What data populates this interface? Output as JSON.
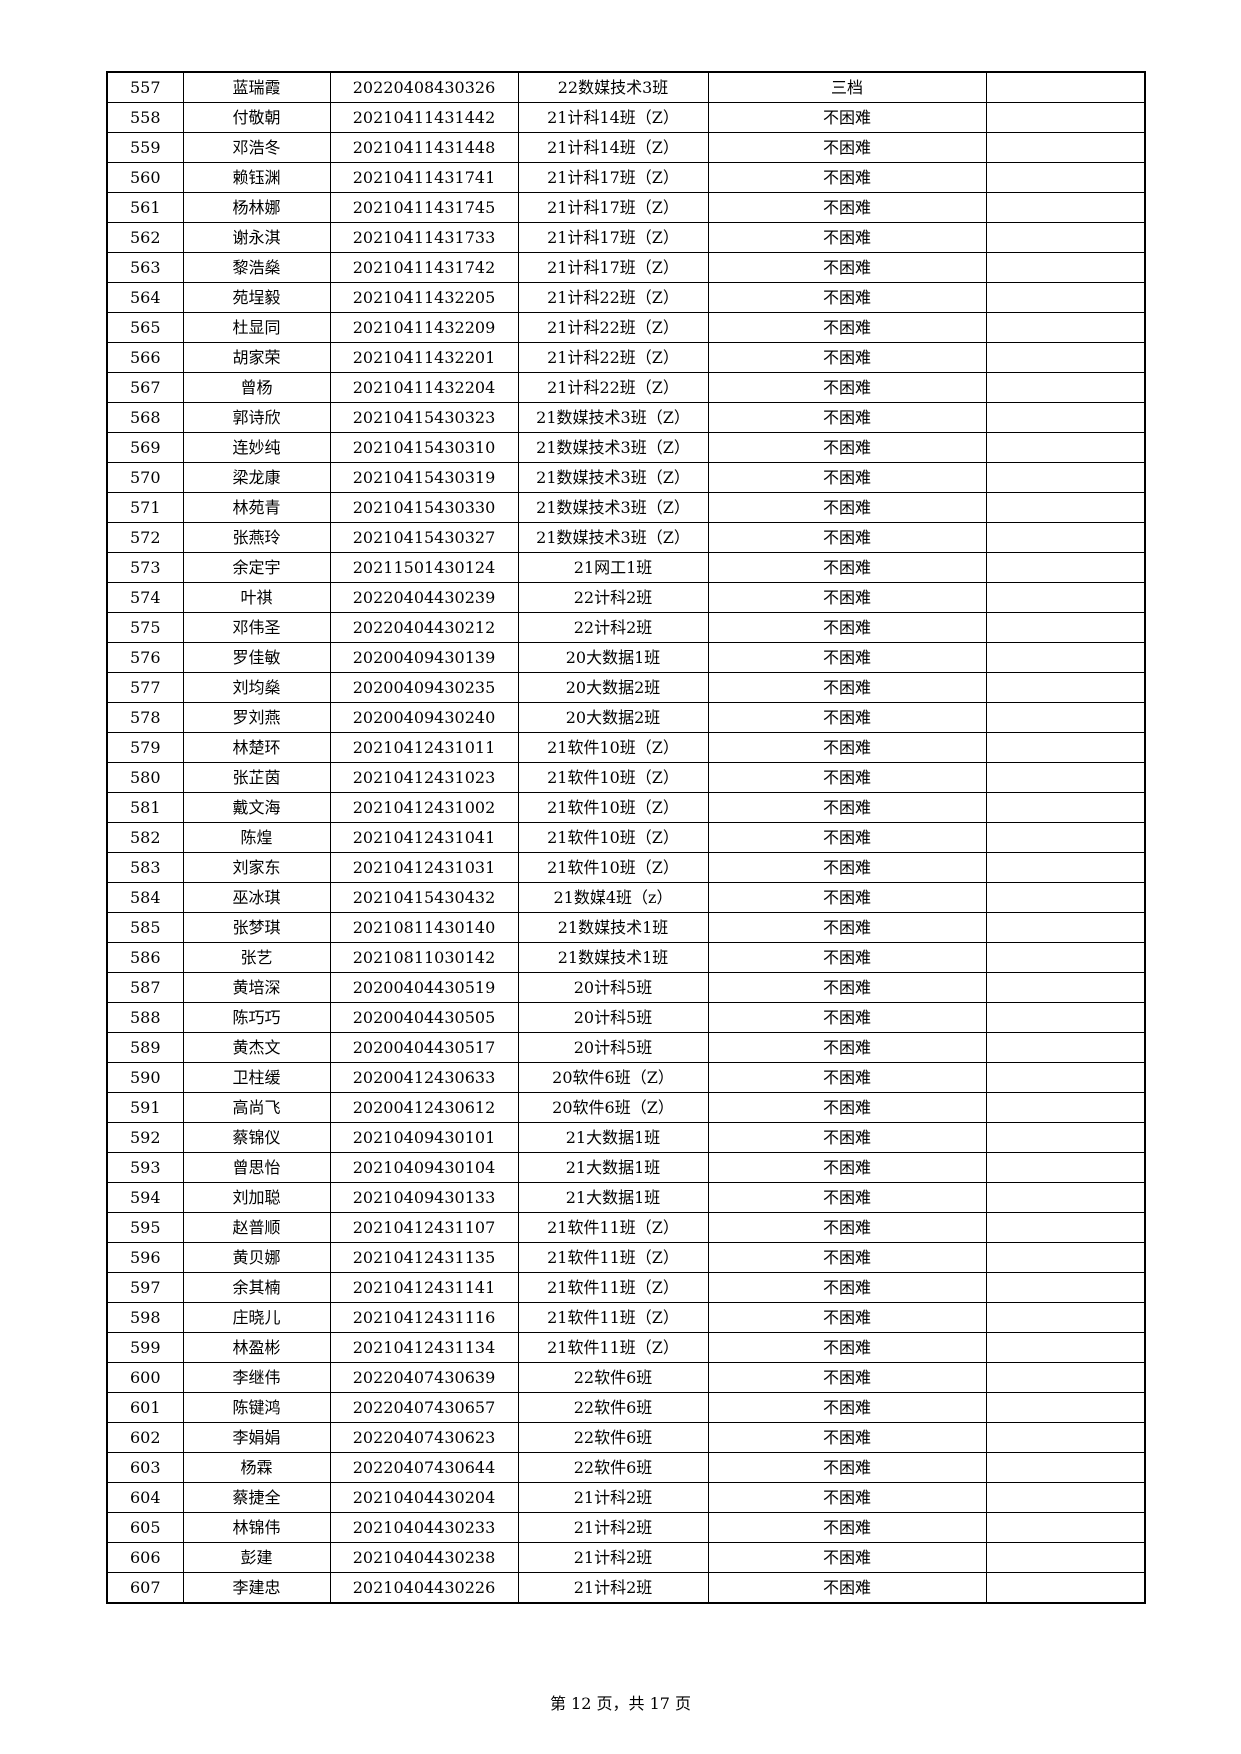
{
  "rows": [
    [
      "557",
      "蓝瑞霞",
      "20220408430326",
      "22数媒技术3班",
      "三档",
      ""
    ],
    [
      "558",
      "付敬朝",
      "20210411431442",
      "21计科14班（Z）",
      "不困难",
      ""
    ],
    [
      "559",
      "邓浩冬",
      "20210411431448",
      "21计科14班（Z）",
      "不困难",
      ""
    ],
    [
      "560",
      "赖钰渊",
      "20210411431741",
      "21计科17班（Z）",
      "不困难",
      ""
    ],
    [
      "561",
      "杨林娜",
      "20210411431745",
      "21计科17班（Z）",
      "不困难",
      ""
    ],
    [
      "562",
      "谢永淇",
      "20210411431733",
      "21计科17班（Z）",
      "不困难",
      ""
    ],
    [
      "563",
      "黎浩燊",
      "20210411431742",
      "21计科17班（Z）",
      "不困难",
      ""
    ],
    [
      "564",
      "苑埕毅",
      "20210411432205",
      "21计科22班（Z）",
      "不困难",
      ""
    ],
    [
      "565",
      "杜显同",
      "20210411432209",
      "21计科22班（Z）",
      "不困难",
      ""
    ],
    [
      "566",
      "胡家荣",
      "20210411432201",
      "21计科22班（Z）",
      "不困难",
      ""
    ],
    [
      "567",
      "曾杨",
      "20210411432204",
      "21计科22班（Z）",
      "不困难",
      ""
    ],
    [
      "568",
      "郭诗欣",
      "20210415430323",
      "21数媒技术3班（Z）",
      "不困难",
      ""
    ],
    [
      "569",
      "连妙纯",
      "20210415430310",
      "21数媒技术3班（Z）",
      "不困难",
      ""
    ],
    [
      "570",
      "梁龙康",
      "20210415430319",
      "21数媒技术3班（Z）",
      "不困难",
      ""
    ],
    [
      "571",
      "林苑青",
      "20210415430330",
      "21数媒技术3班（Z）",
      "不困难",
      ""
    ],
    [
      "572",
      "张燕玲",
      "20210415430327",
      "21数媒技术3班（Z）",
      "不困难",
      ""
    ],
    [
      "573",
      "余定宇",
      "20211501430124",
      "21网工1班",
      "不困难",
      ""
    ],
    [
      "574",
      "叶祺",
      "20220404430239",
      "22计科2班",
      "不困难",
      ""
    ],
    [
      "575",
      "邓伟圣",
      "20220404430212",
      "22计科2班",
      "不困难",
      ""
    ],
    [
      "576",
      "罗佳敏",
      "20200409430139",
      "20大数据1班",
      "不困难",
      ""
    ],
    [
      "577",
      "刘均燊",
      "20200409430235",
      "20大数据2班",
      "不困难",
      ""
    ],
    [
      "578",
      "罗刘燕",
      "20200409430240",
      "20大数据2班",
      "不困难",
      ""
    ],
    [
      "579",
      "林楚环",
      "20210412431011",
      "21软件10班（Z）",
      "不困难",
      ""
    ],
    [
      "580",
      "张芷茵",
      "20210412431023",
      "21软件10班（Z）",
      "不困难",
      ""
    ],
    [
      "581",
      "戴文海",
      "20210412431002",
      "21软件10班（Z）",
      "不困难",
      ""
    ],
    [
      "582",
      "陈煌",
      "20210412431041",
      "21软件10班（Z）",
      "不困难",
      ""
    ],
    [
      "583",
      "刘家东",
      "20210412431031",
      "21软件10班（Z）",
      "不困难",
      ""
    ],
    [
      "584",
      "巫冰琪",
      "20210415430432",
      "21数媒4班（z）",
      "不困难",
      ""
    ],
    [
      "585",
      "张梦琪",
      "20210811430140",
      "21数媒技术1班",
      "不困难",
      ""
    ],
    [
      "586",
      "张艺",
      "20210811030142",
      "21数媒技术1班",
      "不困难",
      ""
    ],
    [
      "587",
      "黄培深",
      "20200404430519",
      "20计科5班",
      "不困难",
      ""
    ],
    [
      "588",
      "陈巧巧",
      "20200404430505",
      "20计科5班",
      "不困难",
      ""
    ],
    [
      "589",
      "黄杰文",
      "20200404430517",
      "20计科5班",
      "不困难",
      ""
    ],
    [
      "590",
      "卫柱缓",
      "20200412430633",
      "20软件6班（Z）",
      "不困难",
      ""
    ],
    [
      "591",
      "高尚飞",
      "20200412430612",
      "20软件6班（Z）",
      "不困难",
      ""
    ],
    [
      "592",
      "蔡锦仪",
      "20210409430101",
      "21大数据1班",
      "不困难",
      ""
    ],
    [
      "593",
      "曾思怡",
      "20210409430104",
      "21大数据1班",
      "不困难",
      ""
    ],
    [
      "594",
      "刘加聪",
      "20210409430133",
      "21大数据1班",
      "不困难",
      ""
    ],
    [
      "595",
      "赵普顺",
      "20210412431107",
      "21软件11班（Z）",
      "不困难",
      ""
    ],
    [
      "596",
      "黄贝娜",
      "20210412431135",
      "21软件11班（Z）",
      "不困难",
      ""
    ],
    [
      "597",
      "余其楠",
      "20210412431141",
      "21软件11班（Z）",
      "不困难",
      ""
    ],
    [
      "598",
      "庄晓儿",
      "20210412431116",
      "21软件11班（Z）",
      "不困难",
      ""
    ],
    [
      "599",
      "林盈彬",
      "20210412431134",
      "21软件11班（Z）",
      "不困难",
      ""
    ],
    [
      "600",
      "李继伟",
      "20220407430639",
      "22软件6班",
      "不困难",
      ""
    ],
    [
      "601",
      "陈键鸿",
      "20220407430657",
      "22软件6班",
      "不困难",
      ""
    ],
    [
      "602",
      "李娟娟",
      "20220407430623",
      "22软件6班",
      "不困难",
      ""
    ],
    [
      "603",
      "杨霖",
      "20220407430644",
      "22软件6班",
      "不困难",
      ""
    ],
    [
      "604",
      "蔡捷全",
      "20210404430204",
      "21计科2班",
      "不困难",
      ""
    ],
    [
      "605",
      "林锦伟",
      "20210404430233",
      "21计科2班",
      "不困难",
      ""
    ],
    [
      "606",
      "彭建",
      "20210404430238",
      "21计科2班",
      "不困难",
      ""
    ],
    [
      "607",
      "李建忠",
      "20210404430226",
      "21计科2班",
      "不困难",
      ""
    ]
  ],
  "footer": "第 12 页，共 17 页"
}
